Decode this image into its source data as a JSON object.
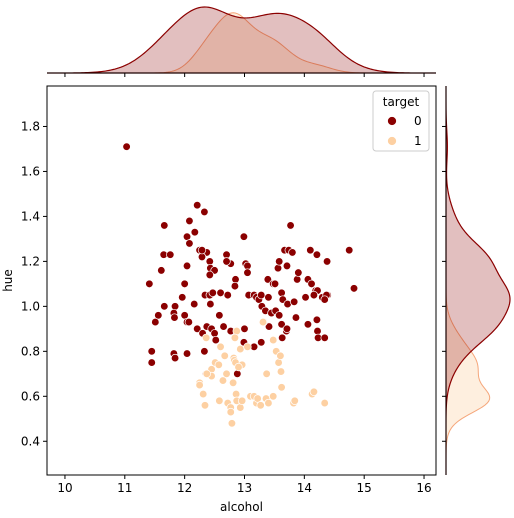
{
  "chart_data": {
    "type": "scatter",
    "kind": "jointplot",
    "xlabel": "alcohol",
    "ylabel": "hue",
    "xlim": [
      9.7,
      16.2
    ],
    "ylim": [
      0.25,
      1.98
    ],
    "xticks": [
      10,
      11,
      12,
      13,
      14,
      15,
      16
    ],
    "yticks": [
      0.4,
      0.6,
      0.8,
      1.0,
      1.2,
      1.4,
      1.6,
      1.8
    ],
    "xtick_labels": [
      "10",
      "11",
      "12",
      "13",
      "14",
      "15",
      "16"
    ],
    "ytick_labels": [
      "0.4",
      "0.6",
      "0.8",
      "1.0",
      "1.2",
      "1.4",
      "1.6",
      "1.8"
    ],
    "grid": false,
    "marginal_distributions": "kde",
    "legend": {
      "title": "target",
      "placement": "top-right",
      "entries": [
        "0",
        "1"
      ]
    },
    "series": [
      {
        "name": "0",
        "color": "#8b0000",
        "points": [
          [
            11.03,
            1.71
          ],
          [
            12.21,
            1.45
          ],
          [
            12.33,
            1.42
          ],
          [
            12.08,
            1.38
          ],
          [
            12.17,
            1.33
          ],
          [
            11.66,
            1.36
          ],
          [
            12.04,
            1.31
          ],
          [
            12.99,
            1.31
          ],
          [
            12.25,
            1.25
          ],
          [
            12.37,
            1.24
          ],
          [
            11.65,
            1.23
          ],
          [
            11.76,
            1.23
          ],
          [
            12.29,
            1.22
          ],
          [
            12.7,
            1.23
          ],
          [
            12.77,
            1.19
          ],
          [
            13.02,
            1.19
          ],
          [
            13.77,
            1.36
          ],
          [
            13.67,
            1.25
          ],
          [
            13.74,
            1.25
          ],
          [
            13.8,
            1.24
          ],
          [
            14.1,
            1.25
          ],
          [
            14.21,
            1.23
          ],
          [
            14.38,
            1.2
          ],
          [
            14.75,
            1.25
          ],
          [
            12.08,
            1.28
          ],
          [
            12.29,
            1.25
          ],
          [
            12.42,
            1.2
          ],
          [
            12.04,
            1.18
          ],
          [
            12.43,
            1.17
          ],
          [
            11.61,
            1.16
          ],
          [
            12.7,
            1.2
          ],
          [
            13.05,
            1.18
          ],
          [
            13.56,
            1.17
          ],
          [
            13.58,
            1.2
          ],
          [
            13.71,
            1.18
          ],
          [
            12.5,
            1.16
          ],
          [
            12.42,
            1.14
          ],
          [
            13.05,
            1.15
          ],
          [
            12.85,
            1.12
          ],
          [
            13.39,
            1.12
          ],
          [
            13.88,
            1.12
          ],
          [
            13.9,
            1.15
          ],
          [
            14.06,
            1.12
          ],
          [
            14.12,
            1.1
          ],
          [
            14.19,
            1.07
          ],
          [
            14.22,
            1.07
          ],
          [
            14.39,
            1.05
          ],
          [
            14.83,
            1.08
          ],
          [
            11.41,
            1.1
          ],
          [
            12.0,
            1.1
          ],
          [
            12.34,
            1.05
          ],
          [
            12.42,
            1.05
          ],
          [
            12.47,
            1.06
          ],
          [
            12.6,
            1.06
          ],
          [
            12.84,
            1.09
          ],
          [
            13.07,
            1.05
          ],
          [
            13.16,
            1.05
          ],
          [
            13.2,
            1.04
          ],
          [
            13.24,
            1.03
          ],
          [
            13.28,
            1.05
          ],
          [
            13.4,
            1.04
          ],
          [
            13.48,
            1.1
          ],
          [
            13.51,
            1.1
          ],
          [
            13.62,
            1.06
          ],
          [
            13.64,
            1.03
          ],
          [
            13.72,
            1.01
          ],
          [
            13.83,
            1.02
          ],
          [
            14.02,
            1.04
          ],
          [
            14.16,
            1.05
          ],
          [
            14.3,
            1.04
          ],
          [
            14.37,
            1.05
          ],
          [
            14.34,
            1.03
          ],
          [
            11.84,
            1.0
          ],
          [
            11.96,
            1.04
          ],
          [
            12.0,
            0.96
          ],
          [
            11.66,
            1.0
          ],
          [
            11.56,
            0.96
          ],
          [
            11.51,
            0.93
          ],
          [
            11.82,
            0.97
          ],
          [
            11.83,
            0.95
          ],
          [
            12.04,
            0.93
          ],
          [
            12.07,
            0.93
          ],
          [
            12.16,
            1.01
          ],
          [
            12.43,
            1.01
          ],
          [
            12.58,
            0.96
          ],
          [
            12.72,
            1.05
          ],
          [
            13.29,
            1.0
          ],
          [
            13.35,
            0.98
          ],
          [
            13.45,
            0.97
          ],
          [
            13.52,
            0.98
          ],
          [
            13.41,
            0.91
          ],
          [
            13.32,
            0.93
          ],
          [
            13.58,
            0.96
          ],
          [
            13.62,
            0.92
          ],
          [
            13.7,
            0.89
          ],
          [
            13.71,
            0.9
          ],
          [
            13.86,
            0.95
          ],
          [
            14.06,
            0.92
          ],
          [
            14.21,
            0.94
          ],
          [
            14.22,
            0.89
          ],
          [
            14.23,
            0.86
          ],
          [
            14.34,
            0.86
          ],
          [
            12.21,
            0.9
          ],
          [
            12.3,
            0.88
          ],
          [
            12.37,
            0.91
          ],
          [
            12.45,
            0.9
          ],
          [
            12.5,
            0.88
          ],
          [
            12.52,
            0.85
          ],
          [
            12.65,
            0.91
          ],
          [
            12.77,
            0.89
          ],
          [
            13.0,
            0.9
          ],
          [
            13.28,
            0.84
          ],
          [
            13.63,
            0.86
          ],
          [
            13.16,
            0.82
          ],
          [
            11.45,
            0.8
          ],
          [
            11.45,
            0.75
          ],
          [
            11.82,
            0.79
          ],
          [
            12.04,
            0.79
          ],
          [
            11.84,
            0.77
          ],
          [
            12.33,
            0.8
          ],
          [
            12.36,
            0.7
          ],
          [
            12.88,
            0.7
          ],
          [
            12.99,
            0.84
          ]
        ]
      },
      {
        "name": "1",
        "color": "#fdd0a2",
        "points": [
          [
            12.87,
            0.89
          ],
          [
            12.84,
            0.86
          ],
          [
            12.93,
            0.81
          ],
          [
            13.05,
            0.82
          ],
          [
            13.31,
            0.93
          ],
          [
            13.48,
            0.85
          ],
          [
            13.53,
            0.8
          ],
          [
            13.57,
            0.75
          ],
          [
            13.6,
            0.78
          ],
          [
            13.61,
            0.71
          ],
          [
            13.37,
            0.7
          ],
          [
            12.6,
            0.82
          ],
          [
            12.67,
            0.78
          ],
          [
            12.82,
            0.77
          ],
          [
            12.83,
            0.76
          ],
          [
            12.85,
            0.75
          ],
          [
            12.96,
            0.74
          ],
          [
            12.51,
            0.75
          ],
          [
            12.57,
            0.74
          ],
          [
            12.7,
            0.7
          ],
          [
            12.64,
            0.67
          ],
          [
            12.45,
            0.72
          ],
          [
            12.45,
            0.69
          ],
          [
            12.37,
            0.7
          ],
          [
            12.25,
            0.66
          ],
          [
            12.25,
            0.65
          ],
          [
            12.31,
            0.61
          ],
          [
            12.34,
            0.56
          ],
          [
            12.58,
            0.58
          ],
          [
            12.72,
            0.57
          ],
          [
            12.77,
            0.55
          ],
          [
            12.77,
            0.53
          ],
          [
            12.79,
            0.48
          ],
          [
            12.86,
            0.61
          ],
          [
            12.87,
            0.58
          ],
          [
            12.93,
            0.55
          ],
          [
            12.96,
            0.58
          ],
          [
            13.1,
            0.6
          ],
          [
            13.16,
            0.6
          ],
          [
            13.2,
            0.57
          ],
          [
            13.22,
            0.59
          ],
          [
            13.27,
            0.56
          ],
          [
            13.36,
            0.59
          ],
          [
            13.4,
            0.57
          ],
          [
            13.48,
            0.6
          ],
          [
            13.62,
            0.64
          ],
          [
            13.82,
            0.57
          ],
          [
            13.84,
            0.58
          ],
          [
            14.13,
            0.61
          ],
          [
            14.16,
            0.62
          ],
          [
            14.34,
            0.57
          ],
          [
            12.81,
            0.66
          ],
          [
            12.9,
            0.73
          ],
          [
            12.36,
            0.86
          ]
        ]
      }
    ]
  }
}
